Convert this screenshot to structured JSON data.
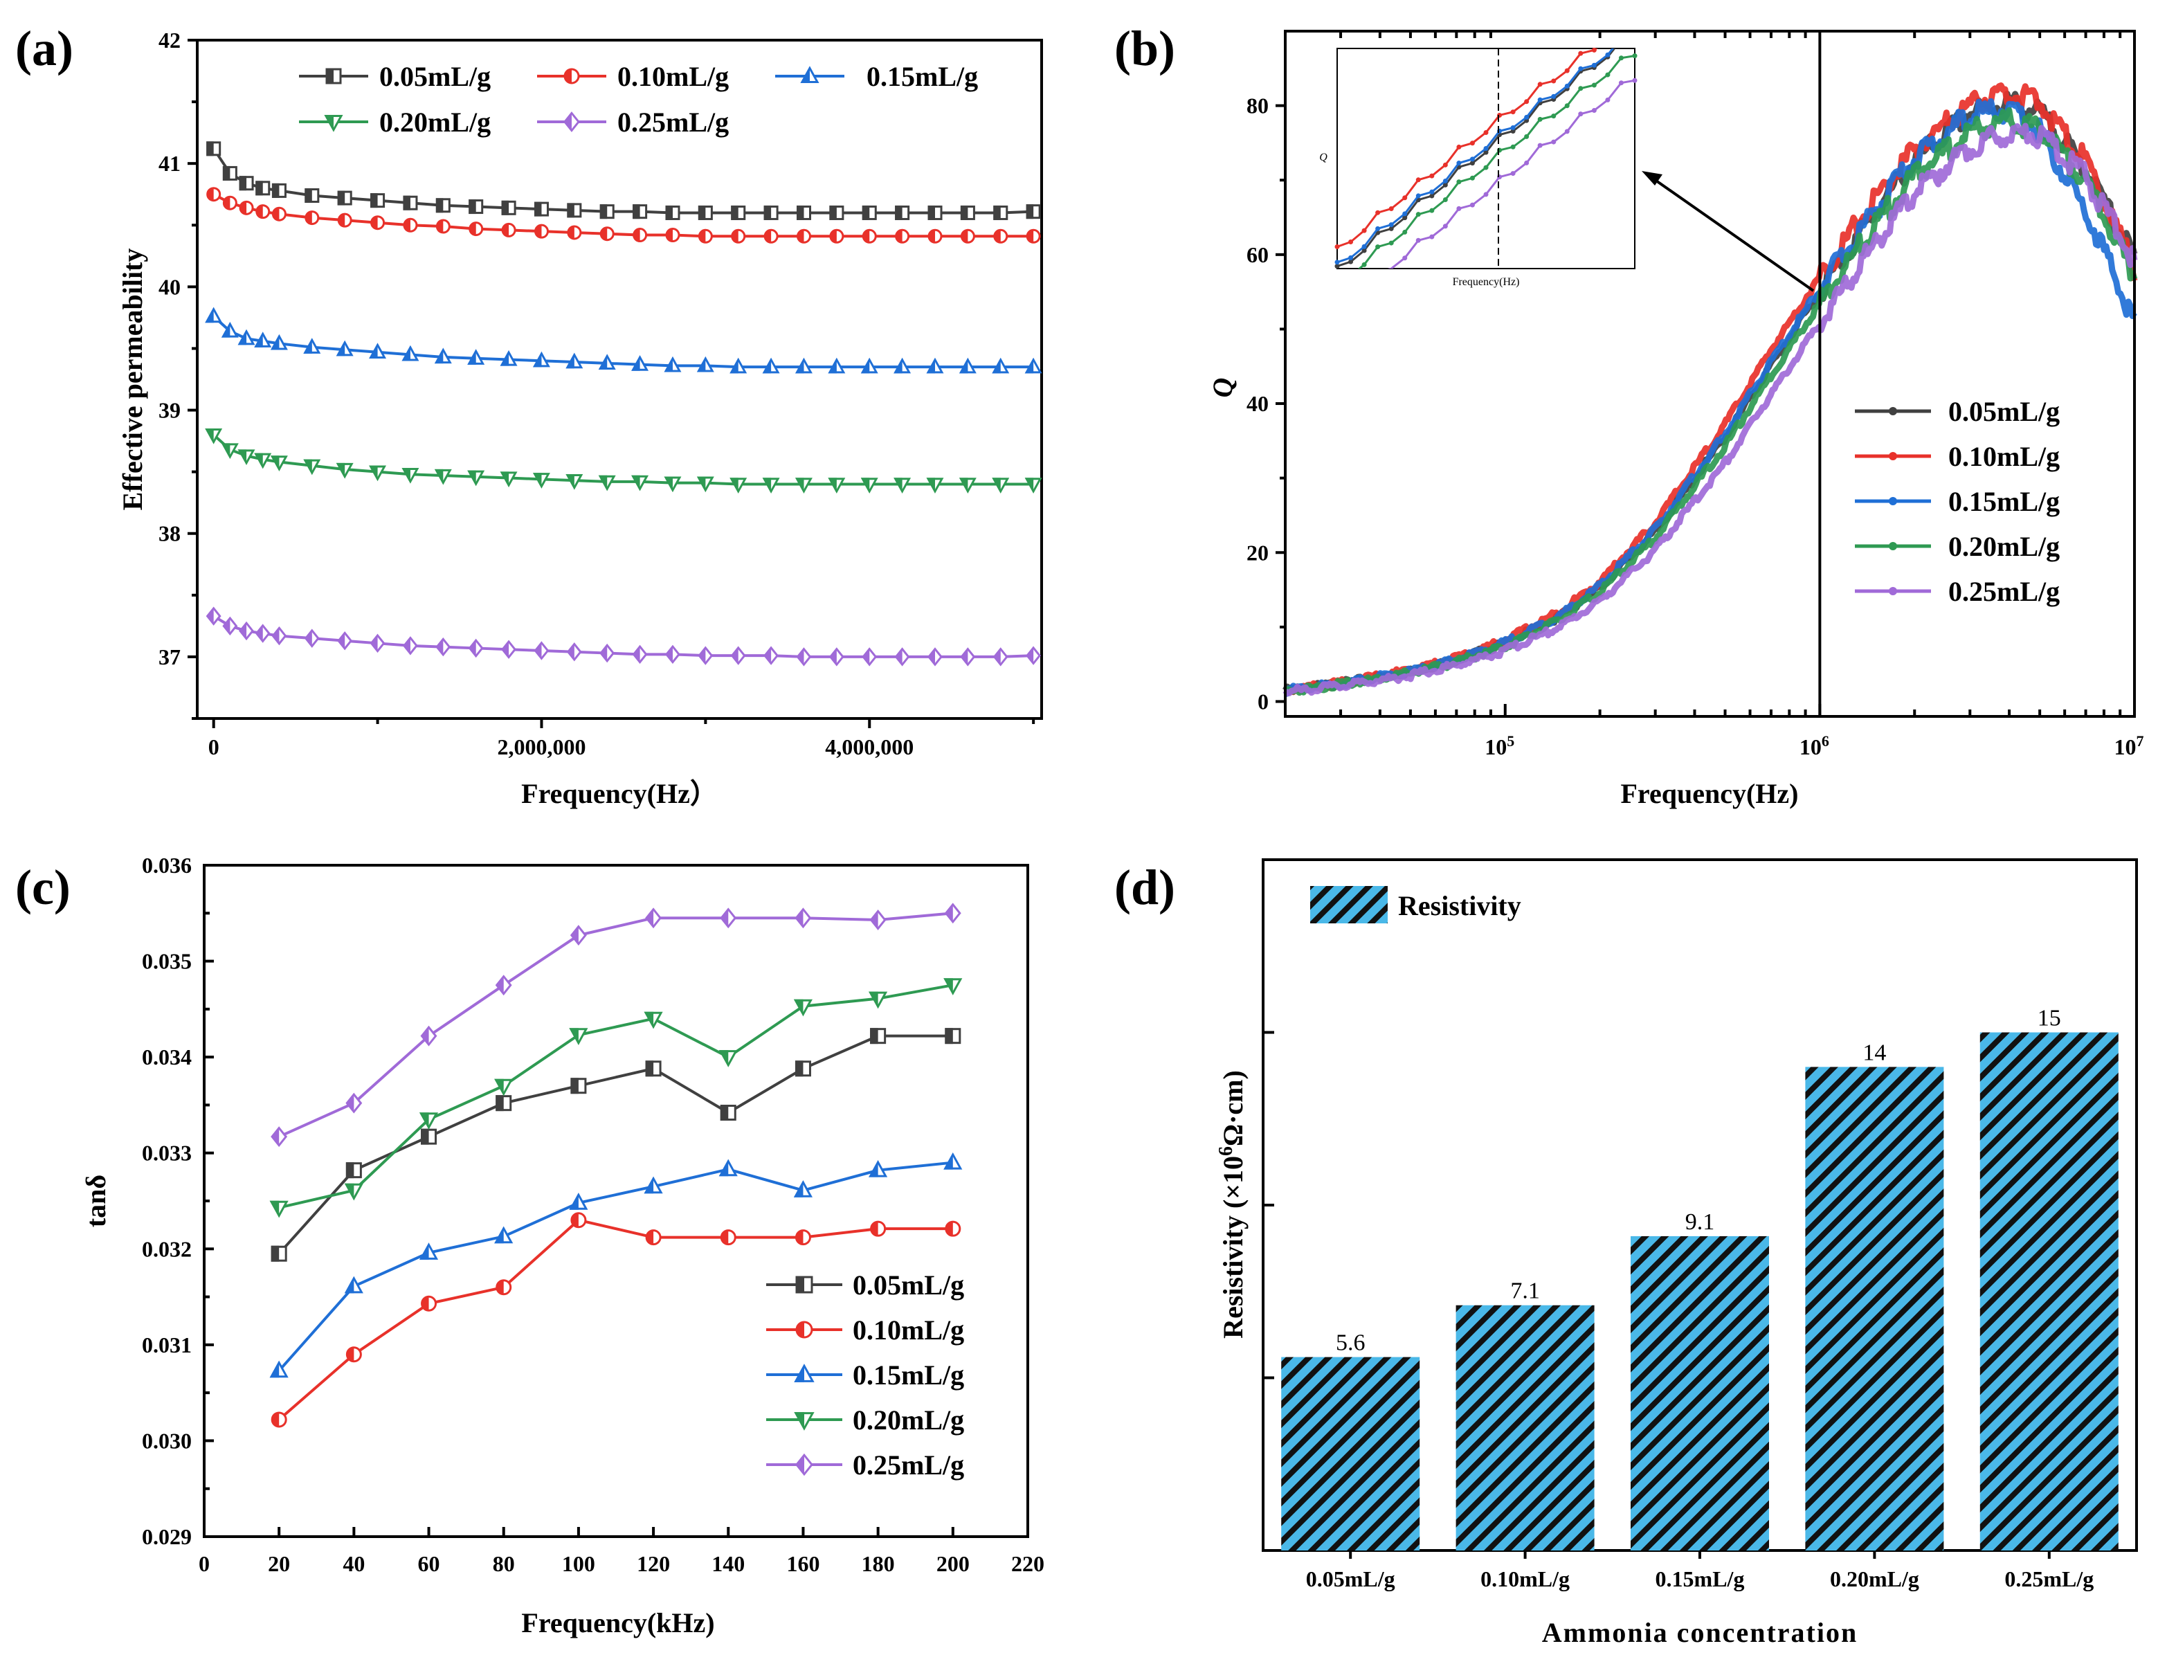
{
  "colors": {
    "s005": "#404040",
    "s010": "#e8312a",
    "s015": "#1f6fd6",
    "s020": "#2e9a52",
    "s025": "#a06ad8",
    "bar": "#4ab8e8"
  },
  "chart_data": [
    {
      "panel": "(a)",
      "type": "line",
      "xlabel": "Frequency(Hz）",
      "ylabel": "Effective permeability",
      "xlim": [
        -100000,
        5050000
      ],
      "ylim": [
        36.5,
        42
      ],
      "xticks": [
        0,
        2000000,
        4000000
      ],
      "xtick_labels": [
        "0",
        "2,000,000",
        "4,000,000"
      ],
      "yticks": [
        37,
        38,
        39,
        40,
        41,
        42
      ],
      "ytick_labels": [
        "37",
        "38",
        "39",
        "40",
        "41",
        "42"
      ],
      "x": [
        0,
        100000,
        200000,
        300000,
        400000,
        600000,
        800000,
        1000000,
        1200000,
        1400000,
        1600000,
        1800000,
        2000000,
        2200000,
        2400000,
        2600000,
        2800000,
        3000000,
        3200000,
        3400000,
        3600000,
        3800000,
        4000000,
        4200000,
        4400000,
        4600000,
        4800000,
        5000000
      ],
      "series": [
        {
          "name": "0.05mL/g",
          "color": "#404040",
          "marker": "square",
          "values": [
            41.12,
            40.92,
            40.84,
            40.8,
            40.78,
            40.74,
            40.72,
            40.7,
            40.68,
            40.66,
            40.65,
            40.64,
            40.63,
            40.62,
            40.61,
            40.61,
            40.6,
            40.6,
            40.6,
            40.6,
            40.6,
            40.6,
            40.6,
            40.6,
            40.6,
            40.6,
            40.6,
            40.61
          ]
        },
        {
          "name": "0.10mL/g",
          "color": "#e8312a",
          "marker": "circle",
          "values": [
            40.75,
            40.68,
            40.64,
            40.61,
            40.59,
            40.56,
            40.54,
            40.52,
            40.5,
            40.49,
            40.47,
            40.46,
            40.45,
            40.44,
            40.43,
            40.42,
            40.42,
            40.41,
            40.41,
            40.41,
            40.41,
            40.41,
            40.41,
            40.41,
            40.41,
            40.41,
            40.41,
            40.41
          ]
        },
        {
          "name": "0.15mL/g",
          "color": "#1f6fd6",
          "marker": "triangle-up",
          "values": [
            39.76,
            39.64,
            39.58,
            39.56,
            39.54,
            39.51,
            39.49,
            39.47,
            39.45,
            39.43,
            39.42,
            39.41,
            39.4,
            39.39,
            39.38,
            39.37,
            39.36,
            39.36,
            39.35,
            39.35,
            39.35,
            39.35,
            39.35,
            39.35,
            39.35,
            39.35,
            39.35,
            39.35
          ]
        },
        {
          "name": "0.20mL/g",
          "color": "#2e9a52",
          "marker": "triangle-down",
          "values": [
            38.8,
            38.68,
            38.63,
            38.6,
            38.58,
            38.55,
            38.52,
            38.5,
            38.48,
            38.47,
            38.46,
            38.45,
            38.44,
            38.43,
            38.42,
            38.42,
            38.41,
            38.41,
            38.4,
            38.4,
            38.4,
            38.4,
            38.4,
            38.4,
            38.4,
            38.4,
            38.4,
            38.4
          ]
        },
        {
          "name": "0.25mL/g",
          "color": "#a06ad8",
          "marker": "diamond",
          "values": [
            37.33,
            37.25,
            37.21,
            37.19,
            37.17,
            37.15,
            37.13,
            37.11,
            37.09,
            37.08,
            37.07,
            37.06,
            37.05,
            37.04,
            37.03,
            37.02,
            37.02,
            37.01,
            37.01,
            37.01,
            37.0,
            37.0,
            37.0,
            37.0,
            37.0,
            37.0,
            37.0,
            37.01
          ]
        }
      ]
    },
    {
      "panel": "(b)",
      "type": "line",
      "xscale": "log",
      "xlabel": "Frequency(Hz)",
      "ylabel": "Q",
      "xlim": [
        20000,
        10000000
      ],
      "ylim": [
        -2,
        90
      ],
      "xticks": [
        100000,
        1000000,
        10000000
      ],
      "xtick_labels": [
        "10",
        "10",
        "10"
      ],
      "xtick_exponents": [
        "5",
        "6",
        "7"
      ],
      "yticks": [
        0,
        20,
        40,
        60,
        80
      ],
      "ytick_labels": [
        "0",
        "20",
        "40",
        "60",
        "80"
      ],
      "vline": 1000000,
      "inset": {
        "xlabel": "Frequency(Hz)",
        "ylabel": "Q"
      },
      "x": [
        20000,
        30000,
        50000,
        70000,
        100000,
        150000,
        200000,
        300000,
        500000,
        700000,
        1000000,
        1500000,
        2000000,
        3000000,
        4000000,
        5000000,
        7000000,
        10000000
      ],
      "series": [
        {
          "name": "0.05mL/g",
          "color": "#404040",
          "values": [
            1.5,
            2.4,
            4.0,
            5.6,
            7.8,
            11.5,
            15.3,
            22.8,
            35.5,
            45.2,
            55.0,
            65.8,
            72.6,
            79.0,
            80.5,
            79.0,
            71.5,
            59.5
          ]
        },
        {
          "name": "0.10mL/g",
          "color": "#e8312a",
          "values": [
            1.5,
            2.5,
            4.2,
            5.9,
            8.2,
            12.1,
            16.1,
            24.0,
            37.2,
            47.2,
            57.0,
            67.5,
            74.0,
            80.2,
            81.8,
            80.3,
            72.5,
            58.0
          ]
        },
        {
          "name": "0.15mL/g",
          "color": "#1f6fd6",
          "values": [
            1.5,
            2.4,
            4.0,
            5.6,
            7.9,
            11.6,
            15.5,
            23.1,
            35.9,
            45.6,
            55.4,
            66.0,
            72.8,
            78.8,
            79.5,
            76.5,
            66.0,
            51.0
          ]
        },
        {
          "name": "0.20mL/g",
          "color": "#2e9a52",
          "values": [
            1.4,
            2.3,
            3.8,
            5.3,
            7.4,
            11.0,
            14.7,
            22.0,
            34.3,
            43.8,
            53.5,
            64.0,
            70.6,
            76.5,
            78.0,
            76.8,
            70.0,
            57.0
          ]
        },
        {
          "name": "0.25mL/g",
          "color": "#a06ad8",
          "values": [
            1.3,
            2.1,
            3.5,
            4.9,
            6.8,
            10.1,
            13.5,
            20.3,
            32.0,
            41.3,
            50.8,
            61.5,
            68.3,
            74.5,
            76.5,
            76.0,
            70.5,
            59.0
          ]
        }
      ]
    },
    {
      "panel": "(c)",
      "type": "line",
      "xlabel": "Frequency(kHz)",
      "ylabel": "tanδ",
      "xlim": [
        0,
        220
      ],
      "ylim": [
        0.029,
        0.036
      ],
      "xticks": [
        0,
        20,
        40,
        60,
        80,
        100,
        120,
        140,
        160,
        180,
        200,
        220
      ],
      "xtick_labels": [
        "0",
        "20",
        "40",
        "60",
        "80",
        "100",
        "120",
        "140",
        "160",
        "180",
        "200",
        "220"
      ],
      "yticks": [
        0.029,
        0.03,
        0.031,
        0.032,
        0.033,
        0.034,
        0.035,
        0.036
      ],
      "ytick_labels": [
        "0.029",
        "0.030",
        "0.031",
        "0.032",
        "0.033",
        "0.034",
        "0.035",
        "0.036"
      ],
      "x": [
        20,
        40,
        60,
        80,
        100,
        120,
        140,
        160,
        180,
        200
      ],
      "series": [
        {
          "name": "0.05mL/g",
          "color": "#404040",
          "marker": "square",
          "values": [
            0.03195,
            0.03282,
            0.03317,
            0.03352,
            0.0337,
            0.03388,
            0.03342,
            0.03388,
            0.03422,
            0.03422
          ]
        },
        {
          "name": "0.10mL/g",
          "color": "#e8312a",
          "marker": "circle",
          "values": [
            0.03022,
            0.0309,
            0.03143,
            0.0316,
            0.0323,
            0.03212,
            0.03212,
            0.03212,
            0.03221,
            0.03221
          ]
        },
        {
          "name": "0.15mL/g",
          "color": "#1f6fd6",
          "marker": "triangle-up",
          "values": [
            0.03073,
            0.03161,
            0.03196,
            0.03213,
            0.03248,
            0.03265,
            0.03283,
            0.03261,
            0.03282,
            0.0329
          ]
        },
        {
          "name": "0.20mL/g",
          "color": "#2e9a52",
          "marker": "triangle-down",
          "values": [
            0.03243,
            0.03261,
            0.03335,
            0.0337,
            0.03423,
            0.0344,
            0.034,
            0.03453,
            0.03461,
            0.03475
          ]
        },
        {
          "name": "0.25mL/g",
          "color": "#a06ad8",
          "marker": "diamond",
          "values": [
            0.03317,
            0.03352,
            0.03422,
            0.03475,
            0.03527,
            0.03545,
            0.03545,
            0.03545,
            0.03543,
            0.0355
          ]
        }
      ]
    },
    {
      "panel": "(d)",
      "type": "bar",
      "xlabel": "Ammonia concentration",
      "ylabel_parts": [
        "Resistivity (×10",
        "6",
        "Ω·cm)"
      ],
      "ylim": [
        0,
        20
      ],
      "yticks": [
        5,
        10,
        15
      ],
      "legend": "Resistivity",
      "categories": [
        "0.05mL/g",
        "0.10mL/g",
        "0.15mL/g",
        "0.20mL/g",
        "0.25mL/g"
      ],
      "values": [
        5.6,
        7.1,
        9.1,
        14,
        15
      ],
      "value_labels": [
        "5.6",
        "7.1",
        "9.1",
        "14",
        "15"
      ]
    }
  ]
}
